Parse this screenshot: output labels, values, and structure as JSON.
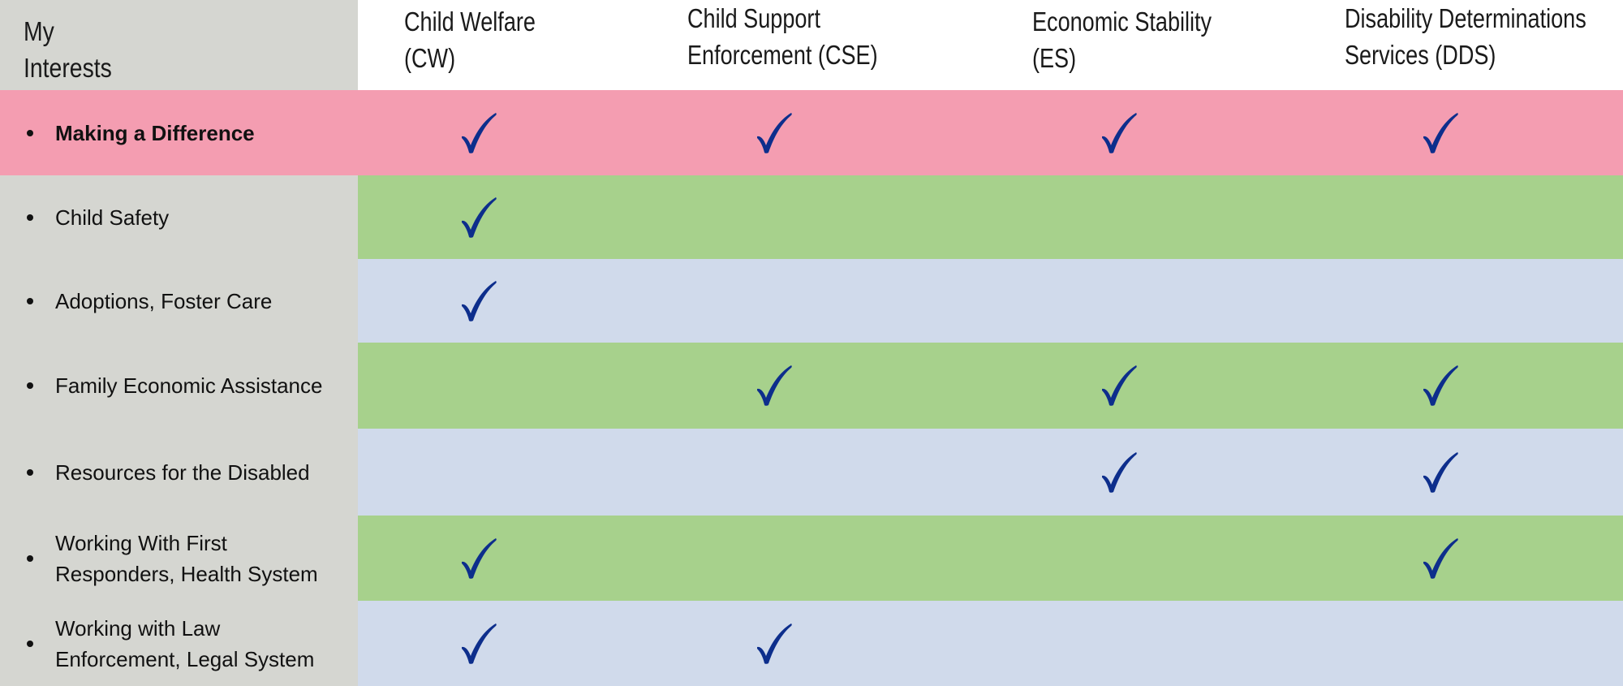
{
  "header": {
    "corner_line1": "My",
    "corner_line2": "Interests",
    "columns": [
      {
        "line1": "Child Welfare",
        "line2": "(CW)"
      },
      {
        "line1": "Child Support",
        "line2": "Enforcement (CSE)"
      },
      {
        "line1": "Economic Stability",
        "line2": "(ES)"
      },
      {
        "line1": "Disability Determinations",
        "line2": "Services (DDS)"
      }
    ]
  },
  "rows": [
    {
      "label_line1": "Making a Difference",
      "label_line2": "",
      "checks": [
        true,
        true,
        true,
        true
      ],
      "color": "#f49db1"
    },
    {
      "label_line1": "Child Safety",
      "label_line2": "",
      "checks": [
        true,
        false,
        false,
        false
      ],
      "color": "#a7d18c"
    },
    {
      "label_line1": "Adoptions, Foster Care",
      "label_line2": "",
      "checks": [
        true,
        false,
        false,
        false
      ],
      "color": "#d0daeb"
    },
    {
      "label_line1": "Family Economic Assistance",
      "label_line2": "",
      "checks": [
        false,
        true,
        true,
        true
      ],
      "color": "#a7d18c"
    },
    {
      "label_line1": "Resources for the Disabled",
      "label_line2": "",
      "checks": [
        false,
        false,
        true,
        true
      ],
      "color": "#d0daeb"
    },
    {
      "label_line1": "Working With First",
      "label_line2": "Responders, Health System",
      "checks": [
        true,
        false,
        false,
        true
      ],
      "color": "#a7d18c"
    },
    {
      "label_line1": "Working with Law",
      "label_line2": "Enforcement, Legal System",
      "checks": [
        true,
        true,
        false,
        false
      ],
      "color": "#d0daeb"
    }
  ],
  "colors": {
    "check": "#0d2e8c",
    "label_bg": "#d5d6d1"
  },
  "icons": {
    "check": "checkmark-icon"
  }
}
